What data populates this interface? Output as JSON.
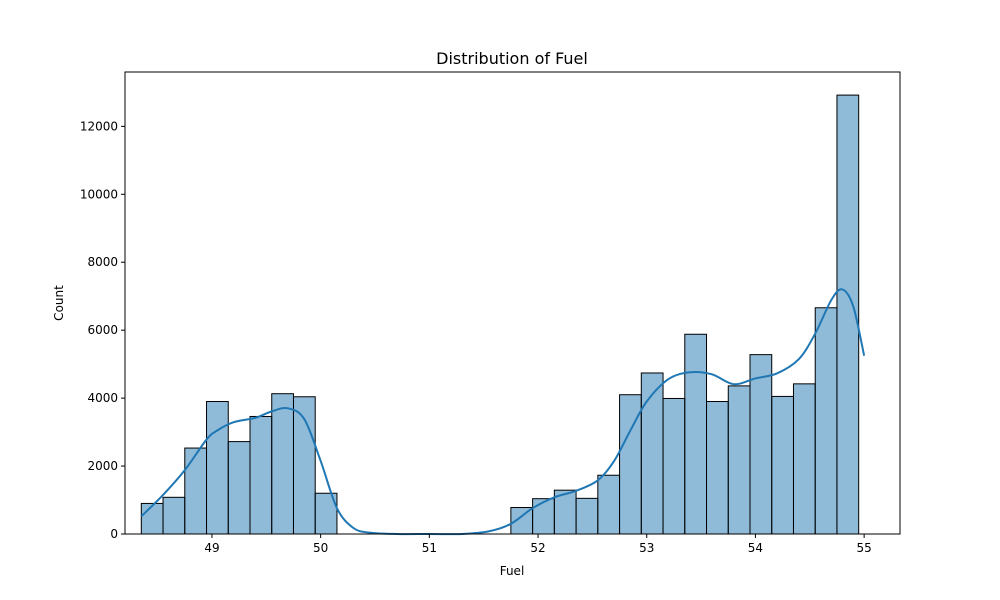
{
  "chart_data": {
    "type": "bar",
    "title": "Distribution of Fuel",
    "xlabel": "Fuel",
    "ylabel": "Count",
    "xlim": [
      48.2,
      55.33
    ],
    "ylim": [
      0,
      13600
    ],
    "xticks": [
      49,
      50,
      51,
      52,
      53,
      54,
      55
    ],
    "yticks": [
      0,
      2000,
      4000,
      6000,
      8000,
      10000,
      12000
    ],
    "grid": false,
    "bar_color": "#1f77b4",
    "bar_alpha": 0.5,
    "edge_color": "#000000",
    "kde_color": "#1f77b4",
    "bin_edges": [
      48.35,
      48.55,
      48.75,
      48.95,
      49.15,
      49.35,
      49.55,
      49.75,
      49.95,
      50.15,
      50.35,
      50.55,
      50.75,
      50.95,
      51.15,
      51.35,
      51.55,
      51.75,
      51.95,
      52.15,
      52.35,
      52.55,
      52.75,
      52.95,
      53.15,
      53.35,
      53.55,
      53.75,
      53.95,
      54.15,
      54.35,
      54.55,
      54.75,
      54.95
    ],
    "values": [
      900,
      1080,
      2530,
      3900,
      2720,
      3460,
      4130,
      4040,
      1200,
      0,
      0,
      0,
      0,
      0,
      0,
      0,
      0,
      780,
      1040,
      1290,
      1050,
      1730,
      4100,
      4740,
      3990,
      5880,
      3900,
      4360,
      5280,
      4050,
      4420,
      6660,
      12920
    ],
    "kde": {
      "x": [
        48.35,
        48.55,
        48.75,
        48.95,
        49.05,
        49.2,
        49.4,
        49.55,
        49.7,
        49.85,
        50.0,
        50.15,
        50.3,
        50.45,
        50.7,
        51.0,
        51.3,
        51.55,
        51.75,
        51.95,
        52.15,
        52.35,
        52.55,
        52.7,
        52.85,
        53.0,
        53.2,
        53.4,
        53.6,
        53.8,
        54.0,
        54.2,
        54.4,
        54.55,
        54.7,
        54.8,
        54.9,
        55.0
      ],
      "y": [
        520,
        1150,
        1880,
        2780,
        3050,
        3290,
        3420,
        3610,
        3700,
        3380,
        2150,
        760,
        180,
        40,
        0,
        0,
        0,
        80,
        300,
        760,
        1080,
        1270,
        1580,
        2150,
        3050,
        3900,
        4560,
        4760,
        4700,
        4410,
        4580,
        4730,
        5150,
        5900,
        6900,
        7200,
        6700,
        5250
      ]
    }
  }
}
